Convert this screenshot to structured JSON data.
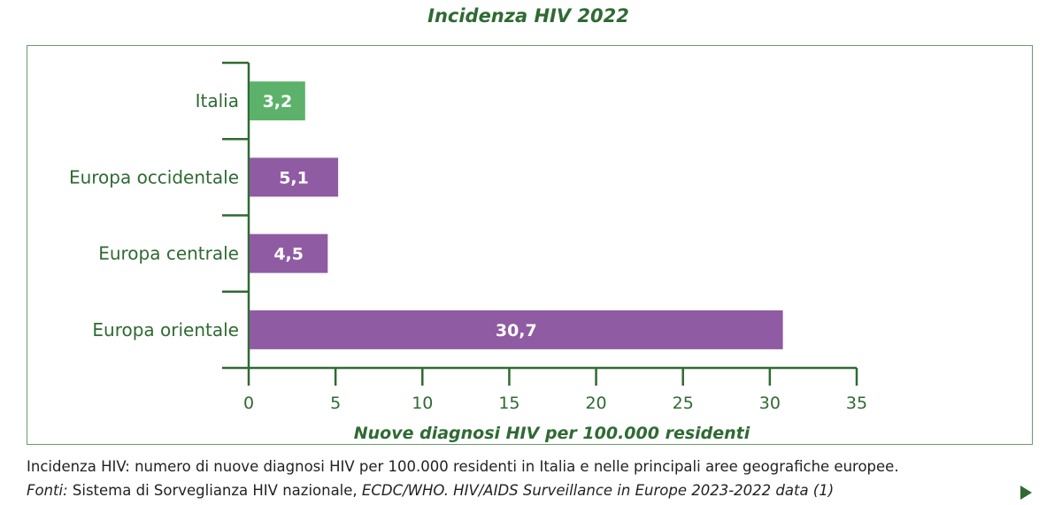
{
  "chart_data": {
    "type": "bar",
    "orientation": "horizontal",
    "title": "Incidenza HIV 2022",
    "xlabel": "Nuove diagnosi HIV per 100.000 residenti",
    "ylabel": "",
    "xlim": [
      0,
      35
    ],
    "xticks": [
      0,
      5,
      10,
      15,
      20,
      25,
      30,
      35
    ],
    "categories": [
      "Italia",
      "Europa occidentale",
      "Europa centrale",
      "Europa orientale"
    ],
    "values": [
      3.2,
      5.1,
      4.5,
      30.7
    ],
    "value_labels": [
      "3,2",
      "5,1",
      "4,5",
      "30,7"
    ],
    "bar_colors": [
      "#5cb26a",
      "#8f5ba3",
      "#8f5ba3",
      "#8f5ba3"
    ],
    "axis_color": "#2f6a33",
    "grid": false,
    "legend": "none"
  },
  "caption": {
    "line1": "Incidenza HIV: numero di nuove diagnosi HIV per 100.000 residenti in Italia e nelle principali aree geografiche europee.",
    "line2_label": "Fonti:",
    "line2_normal": " Sistema di Sorveglianza HIV nazionale, ",
    "line2_italic": "ECDC/WHO. HIV/AIDS Surveillance in Europe 2023-2022 data (1)"
  },
  "icons": {
    "next": "play-triangle-icon"
  }
}
